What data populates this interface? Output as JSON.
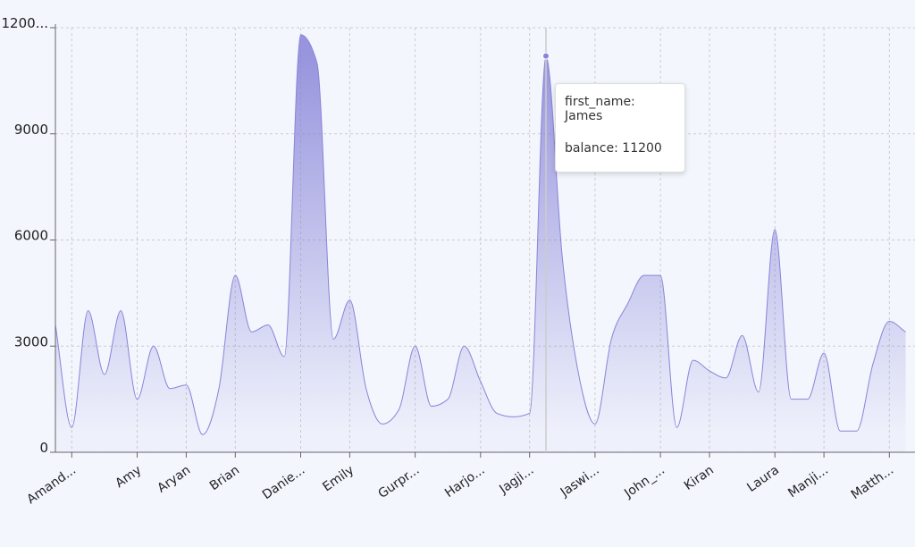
{
  "chart_data": {
    "type": "area",
    "color": "#8884d8",
    "categories": [
      null,
      "Amand...",
      null,
      null,
      null,
      "Amy",
      null,
      null,
      "Aryan",
      null,
      null,
      "Brian",
      null,
      null,
      null,
      "Danie...",
      null,
      null,
      "Emily",
      null,
      null,
      null,
      "Gurpr...",
      null,
      null,
      null,
      "Harjo...",
      null,
      null,
      "Jagji...",
      null,
      null,
      null,
      "Jaswi...",
      null,
      null,
      null,
      "John_...",
      null,
      null,
      "Kiran",
      null,
      null,
      null,
      "Laura",
      null,
      null,
      "Manji...",
      null,
      null,
      null,
      "Matth...",
      null
    ],
    "values": [
      3600,
      700,
      4000,
      2200,
      4000,
      1500,
      3000,
      1800,
      1900,
      500,
      1800,
      5000,
      3400,
      3600,
      2700,
      11800,
      11000,
      3200,
      4300,
      1800,
      800,
      1200,
      3000,
      1300,
      1500,
      3000,
      2000,
      1100,
      1000,
      1100,
      11200,
      5500,
      2200,
      800,
      3200,
      4200,
      5000,
      5000,
      700,
      2600,
      2300,
      2100,
      3300,
      1700,
      6300,
      1500,
      1500,
      2800,
      600,
      600,
      2500,
      3700,
      3400
    ],
    "ylim": [
      0,
      12000
    ],
    "yticks": [
      0,
      3000,
      6000,
      9000,
      {
        "value": 12000,
        "label": "1200..."
      }
    ],
    "grid": true,
    "tooltip": {
      "index": 30,
      "name_text": "first_name: James",
      "value_text": "balance: 11200"
    }
  }
}
